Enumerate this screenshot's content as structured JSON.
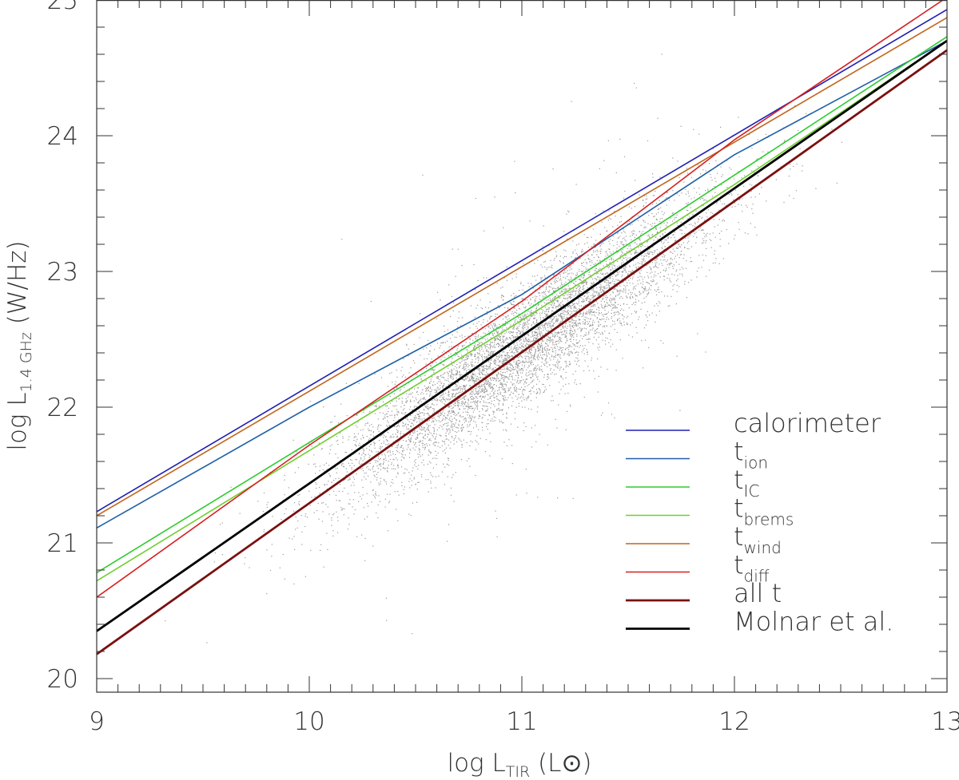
{
  "chart_data": {
    "type": "line",
    "xlabel": {
      "main": "log L",
      "sub": "TIR",
      "unit_open": " (L",
      "unit_symbol": "⊙",
      "unit_close": ")"
    },
    "ylabel": {
      "main": "log L",
      "sub": "1.4 GHz",
      "unit": " (W/Hz)"
    },
    "xlim": [
      9,
      13
    ],
    "ylim": [
      19.9,
      25
    ],
    "xticks": [
      "9",
      "10",
      "11",
      "12",
      "13"
    ],
    "yticks": [
      "20",
      "21",
      "22",
      "23",
      "24",
      "25"
    ],
    "grid": false,
    "legend_position": "bottom-right",
    "series": [
      {
        "legend_main": "calorimeter",
        "legend_sub": "",
        "color": "#1f1fb4",
        "width": 1.6,
        "x": [
          9,
          13
        ],
        "y": [
          21.23,
          24.93
        ]
      },
      {
        "legend_main": "t",
        "legend_sub": "ion",
        "color": "#1f5fa8",
        "width": 1.6,
        "x": [
          9,
          10,
          11,
          12,
          13
        ],
        "y": [
          21.11,
          22.0,
          22.83,
          23.86,
          24.7
        ]
      },
      {
        "legend_main": "t",
        "legend_sub": "IC",
        "color": "#2ecc2e",
        "width": 1.6,
        "x": [
          9,
          10,
          11,
          12,
          13
        ],
        "y": [
          20.78,
          21.74,
          22.69,
          23.71,
          24.73
        ]
      },
      {
        "legend_main": "t",
        "legend_sub": "brems",
        "color": "#6fcf2f",
        "width": 1.6,
        "x": [
          9,
          10,
          11,
          12,
          13
        ],
        "y": [
          20.72,
          21.68,
          22.64,
          23.64,
          24.7
        ]
      },
      {
        "legend_main": "t",
        "legend_sub": "wind",
        "color": "#c0661e",
        "width": 1.6,
        "x": [
          9,
          13
        ],
        "y": [
          21.2,
          24.87
        ]
      },
      {
        "legend_main": "t",
        "legend_sub": "diff",
        "color": "#d62020",
        "width": 1.6,
        "x": [
          9,
          10,
          11,
          12,
          13
        ],
        "y": [
          20.6,
          21.72,
          22.78,
          23.97,
          25.02
        ]
      },
      {
        "legend_main": "all t",
        "legend_sub": "",
        "color": "#7a1010",
        "width": 2.8,
        "x": [
          9,
          13
        ],
        "y": [
          20.18,
          24.63
        ]
      },
      {
        "legend_main": "Molnar et al.",
        "legend_sub": "",
        "color": "#000000",
        "width": 2.8,
        "x": [
          9,
          13
        ],
        "y": [
          20.35,
          24.7
        ]
      }
    ],
    "scatter": {
      "color": "#9a9a9a",
      "x_range": [
        9.0,
        12.6
      ],
      "x_peak": 11.0,
      "relation_slope": 1.1,
      "relation_intercept": 10.35,
      "scatter_sigma": 0.22
    }
  }
}
